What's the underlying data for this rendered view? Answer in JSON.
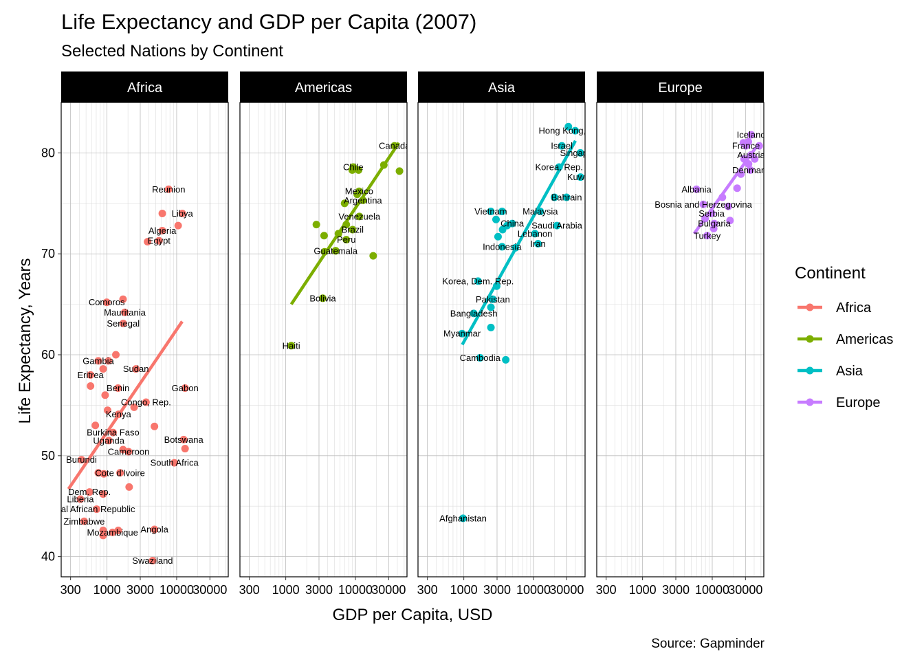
{
  "chart_data": {
    "type": "scatter",
    "title": "Life Expectancy and GDP per Capita (2007)",
    "subtitle": "Selected Nations by Continent",
    "xlabel": "GDP per Capita, USD",
    "ylabel": "Life Expectancy, Years",
    "caption": "Source: Gapminder",
    "x_scale": "log10",
    "xlim": [
      220,
      55000
    ],
    "ylim": [
      38,
      85
    ],
    "x_ticks": [
      300,
      1000,
      3000,
      10000,
      30000
    ],
    "x_tick_labels": [
      "300",
      "1000",
      "3000",
      "10000",
      "30000"
    ],
    "y_ticks": [
      40,
      50,
      60,
      70,
      80
    ],
    "y_tick_labels": [
      "40",
      "50",
      "60",
      "70",
      "80"
    ],
    "grid": true,
    "legend": {
      "title": "Continent",
      "position": "right",
      "entries": [
        "Africa",
        "Americas",
        "Asia",
        "Europe"
      ]
    },
    "facets": [
      {
        "name": "Africa",
        "color": "#F8766D",
        "trend": {
          "x": [
            280,
            12000
          ],
          "y": [
            46.7,
            63.3
          ]
        },
        "points": [
          {
            "label": "Reunion",
            "x": 7670,
            "y": 76.4
          },
          {
            "label": "Libya",
            "x": 12060,
            "y": 74.0
          },
          {
            "label": "",
            "x": 6220,
            "y": 74.0
          },
          {
            "label": "Algeria",
            "x": 6220,
            "y": 72.3
          },
          {
            "label": "Egypt",
            "x": 5580,
            "y": 71.3
          },
          {
            "label": "",
            "x": 3820,
            "y": 71.2
          },
          {
            "label": "",
            "x": 10500,
            "y": 72.8
          },
          {
            "label": "Comoros",
            "x": 990,
            "y": 65.2
          },
          {
            "label": "",
            "x": 1700,
            "y": 65.5
          },
          {
            "label": "Mauritania",
            "x": 1800,
            "y": 64.2
          },
          {
            "label": "Senegal",
            "x": 1710,
            "y": 63.1
          },
          {
            "label": "",
            "x": 1340,
            "y": 60.0
          },
          {
            "label": "Gambia",
            "x": 750,
            "y": 59.4
          },
          {
            "label": "",
            "x": 1050,
            "y": 59.4
          },
          {
            "label": "",
            "x": 880,
            "y": 58.6
          },
          {
            "label": "Sudan",
            "x": 2600,
            "y": 58.6
          },
          {
            "label": "Eritrea",
            "x": 580,
            "y": 58.0
          },
          {
            "label": "",
            "x": 580,
            "y": 56.9
          },
          {
            "label": "Benin",
            "x": 1440,
            "y": 56.7
          },
          {
            "label": "Gabon",
            "x": 13200,
            "y": 56.7
          },
          {
            "label": "",
            "x": 940,
            "y": 56.0
          },
          {
            "label": "Congo, Rep.",
            "x": 3630,
            "y": 55.3
          },
          {
            "label": "",
            "x": 2450,
            "y": 54.8
          },
          {
            "label": "Kenya",
            "x": 1460,
            "y": 54.1
          },
          {
            "label": "",
            "x": 1020,
            "y": 54.5
          },
          {
            "label": "",
            "x": 680,
            "y": 53.0
          },
          {
            "label": "",
            "x": 4800,
            "y": 52.9
          },
          {
            "label": "Burkina Faso",
            "x": 1220,
            "y": 52.3
          },
          {
            "label": "Uganda",
            "x": 1060,
            "y": 51.5
          },
          {
            "label": "Botswana",
            "x": 12600,
            "y": 51.6
          },
          {
            "label": "",
            "x": 1700,
            "y": 50.6
          },
          {
            "label": "",
            "x": 13200,
            "y": 50.7
          },
          {
            "label": "Cameroon",
            "x": 2040,
            "y": 50.4
          },
          {
            "label": "Burundi",
            "x": 430,
            "y": 49.6
          },
          {
            "label": "South Africa",
            "x": 9270,
            "y": 49.3
          },
          {
            "label": "Cote d'Ivoire",
            "x": 1540,
            "y": 48.3
          },
          {
            "label": "",
            "x": 900,
            "y": 48.2
          },
          {
            "label": "",
            "x": 750,
            "y": 48.3
          },
          {
            "label": "",
            "x": 2080,
            "y": 46.9
          },
          {
            "label": "Dem. Rep.",
            "x": 560,
            "y": 46.4
          },
          {
            "label": "",
            "x": 880,
            "y": 46.2
          },
          {
            "label": "Liberia",
            "x": 415,
            "y": 45.7
          },
          {
            "label": "ral African Republic",
            "x": 710,
            "y": 44.7
          },
          {
            "label": "Zimbabwe",
            "x": 470,
            "y": 43.5
          },
          {
            "label": "",
            "x": 880,
            "y": 42.6
          },
          {
            "label": "Angola",
            "x": 4800,
            "y": 42.7
          },
          {
            "label": "Mozambique",
            "x": 1200,
            "y": 42.4
          },
          {
            "label": "",
            "x": 1450,
            "y": 42.6
          },
          {
            "label": "",
            "x": 880,
            "y": 42.1
          },
          {
            "label": "Swaziland",
            "x": 4510,
            "y": 39.6
          }
        ]
      },
      {
        "name": "Americas",
        "color": "#7CAE00",
        "trend": {
          "x": [
            1200,
            42000
          ],
          "y": [
            65.0,
            81.0
          ]
        },
        "points": [
          {
            "label": "Canada",
            "x": 36300,
            "y": 80.7
          },
          {
            "label": "",
            "x": 42900,
            "y": 78.2
          },
          {
            "label": "",
            "x": 25600,
            "y": 78.8
          },
          {
            "label": "Chile",
            "x": 9300,
            "y": 78.6
          },
          {
            "label": "",
            "x": 9000,
            "y": 78.3
          },
          {
            "label": "",
            "x": 11100,
            "y": 78.3
          },
          {
            "label": "Mexico",
            "x": 11300,
            "y": 76.2
          },
          {
            "label": "",
            "x": 10600,
            "y": 75.9
          },
          {
            "label": "Argentina",
            "x": 12800,
            "y": 75.3
          },
          {
            "label": "",
            "x": 7000,
            "y": 75.0
          },
          {
            "label": "Venezuela",
            "x": 11400,
            "y": 73.7
          },
          {
            "label": "",
            "x": 2750,
            "y": 72.9
          },
          {
            "label": "",
            "x": 7400,
            "y": 72.9
          },
          {
            "label": "Brazil",
            "x": 9100,
            "y": 72.4
          },
          {
            "label": "",
            "x": 5700,
            "y": 72.0
          },
          {
            "label": "",
            "x": 3550,
            "y": 71.8
          },
          {
            "label": "Peru",
            "x": 7400,
            "y": 71.4
          },
          {
            "label": "",
            "x": 5200,
            "y": 70.3
          },
          {
            "label": "Guatemala",
            "x": 5200,
            "y": 70.3
          },
          {
            "label": "",
            "x": 3600,
            "y": 70.2
          },
          {
            "label": "",
            "x": 18000,
            "y": 69.8
          },
          {
            "label": "Bolivia",
            "x": 3400,
            "y": 65.6
          },
          {
            "label": "Haiti",
            "x": 1200,
            "y": 60.9
          }
        ]
      },
      {
        "name": "Asia",
        "color": "#00BFC4",
        "trend": {
          "x": [
            950,
            40000
          ],
          "y": [
            61.0,
            81.2
          ]
        },
        "points": [
          {
            "label": "Hong Kong, China",
            "x": 39700,
            "y": 82.2
          },
          {
            "label": "",
            "x": 31700,
            "y": 82.6
          },
          {
            "label": "Israel",
            "x": 25500,
            "y": 80.7
          },
          {
            "label": "Singapore",
            "x": 47100,
            "y": 80.0
          },
          {
            "label": "Korea, Rep.",
            "x": 23300,
            "y": 78.6
          },
          {
            "label": "Kuwait",
            "x": 47300,
            "y": 77.6
          },
          {
            "label": "Bahrain",
            "x": 29800,
            "y": 75.6
          },
          {
            "label": "",
            "x": 20000,
            "y": 75.6
          },
          {
            "label": "Vietnam",
            "x": 2440,
            "y": 74.2
          },
          {
            "label": "",
            "x": 3540,
            "y": 74.2
          },
          {
            "label": "Malaysia",
            "x": 12500,
            "y": 74.2
          },
          {
            "label": "",
            "x": 2900,
            "y": 73.4
          },
          {
            "label": "China",
            "x": 4960,
            "y": 73.0
          },
          {
            "label": "",
            "x": 4180,
            "y": 72.8
          },
          {
            "label": "Saudi Arabia",
            "x": 21700,
            "y": 72.8
          },
          {
            "label": "",
            "x": 3600,
            "y": 72.4
          },
          {
            "label": "Lebanon",
            "x": 10500,
            "y": 72.0
          },
          {
            "label": "",
            "x": 3100,
            "y": 71.7
          },
          {
            "label": "Iran",
            "x": 11600,
            "y": 71.0
          },
          {
            "label": "Indonesia",
            "x": 3540,
            "y": 70.7
          },
          {
            "label": "",
            "x": 5500,
            "y": 70.6
          },
          {
            "label": "Korea, Dem. Rep.",
            "x": 1600,
            "y": 67.3
          },
          {
            "label": "",
            "x": 2960,
            "y": 66.8
          },
          {
            "label": "Pakistan",
            "x": 2610,
            "y": 65.5
          },
          {
            "label": "",
            "x": 2450,
            "y": 64.7
          },
          {
            "label": "Bangladesh",
            "x": 1390,
            "y": 64.1
          },
          {
            "label": "",
            "x": 2450,
            "y": 62.7
          },
          {
            "label": "Myanmar",
            "x": 944,
            "y": 62.1
          },
          {
            "label": "Cambodia",
            "x": 1710,
            "y": 59.7
          },
          {
            "label": "",
            "x": 4000,
            "y": 59.5
          },
          {
            "label": "Afghanistan",
            "x": 975,
            "y": 43.8
          }
        ]
      },
      {
        "name": "Europe",
        "color": "#C77CFF",
        "trend": {
          "x": [
            5500,
            42000
          ],
          "y": [
            72.0,
            80.5
          ]
        },
        "points": [
          {
            "label": "Iceland",
            "x": 36200,
            "y": 81.8
          },
          {
            "label": "",
            "x": 33000,
            "y": 81.1
          },
          {
            "label": "France",
            "x": 30500,
            "y": 80.7
          },
          {
            "label": "",
            "x": 47300,
            "y": 80.7
          },
          {
            "label": "",
            "x": 28000,
            "y": 81.0
          },
          {
            "label": "Austria",
            "x": 36100,
            "y": 79.8
          },
          {
            "label": "",
            "x": 28700,
            "y": 79.4
          },
          {
            "label": "",
            "x": 40700,
            "y": 79.4
          },
          {
            "label": "",
            "x": 33200,
            "y": 78.9
          },
          {
            "label": "Denmark",
            "x": 35300,
            "y": 78.3
          },
          {
            "label": "",
            "x": 25800,
            "y": 77.9
          },
          {
            "label": "Albania",
            "x": 5940,
            "y": 76.4
          },
          {
            "label": "",
            "x": 22800,
            "y": 76.5
          },
          {
            "label": "",
            "x": 14000,
            "y": 75.6
          },
          {
            "label": "Bosnia and Herzegovina",
            "x": 7450,
            "y": 74.9
          },
          {
            "label": "",
            "x": 17000,
            "y": 74.7
          },
          {
            "label": "Serbia",
            "x": 9790,
            "y": 74.0
          },
          {
            "label": "",
            "x": 7900,
            "y": 73.5
          },
          {
            "label": "",
            "x": 18000,
            "y": 73.3
          },
          {
            "label": "Bulgaria",
            "x": 10700,
            "y": 73.0
          },
          {
            "label": "",
            "x": 10500,
            "y": 72.5
          },
          {
            "label": "Turkey",
            "x": 8460,
            "y": 71.8
          }
        ]
      }
    ]
  }
}
